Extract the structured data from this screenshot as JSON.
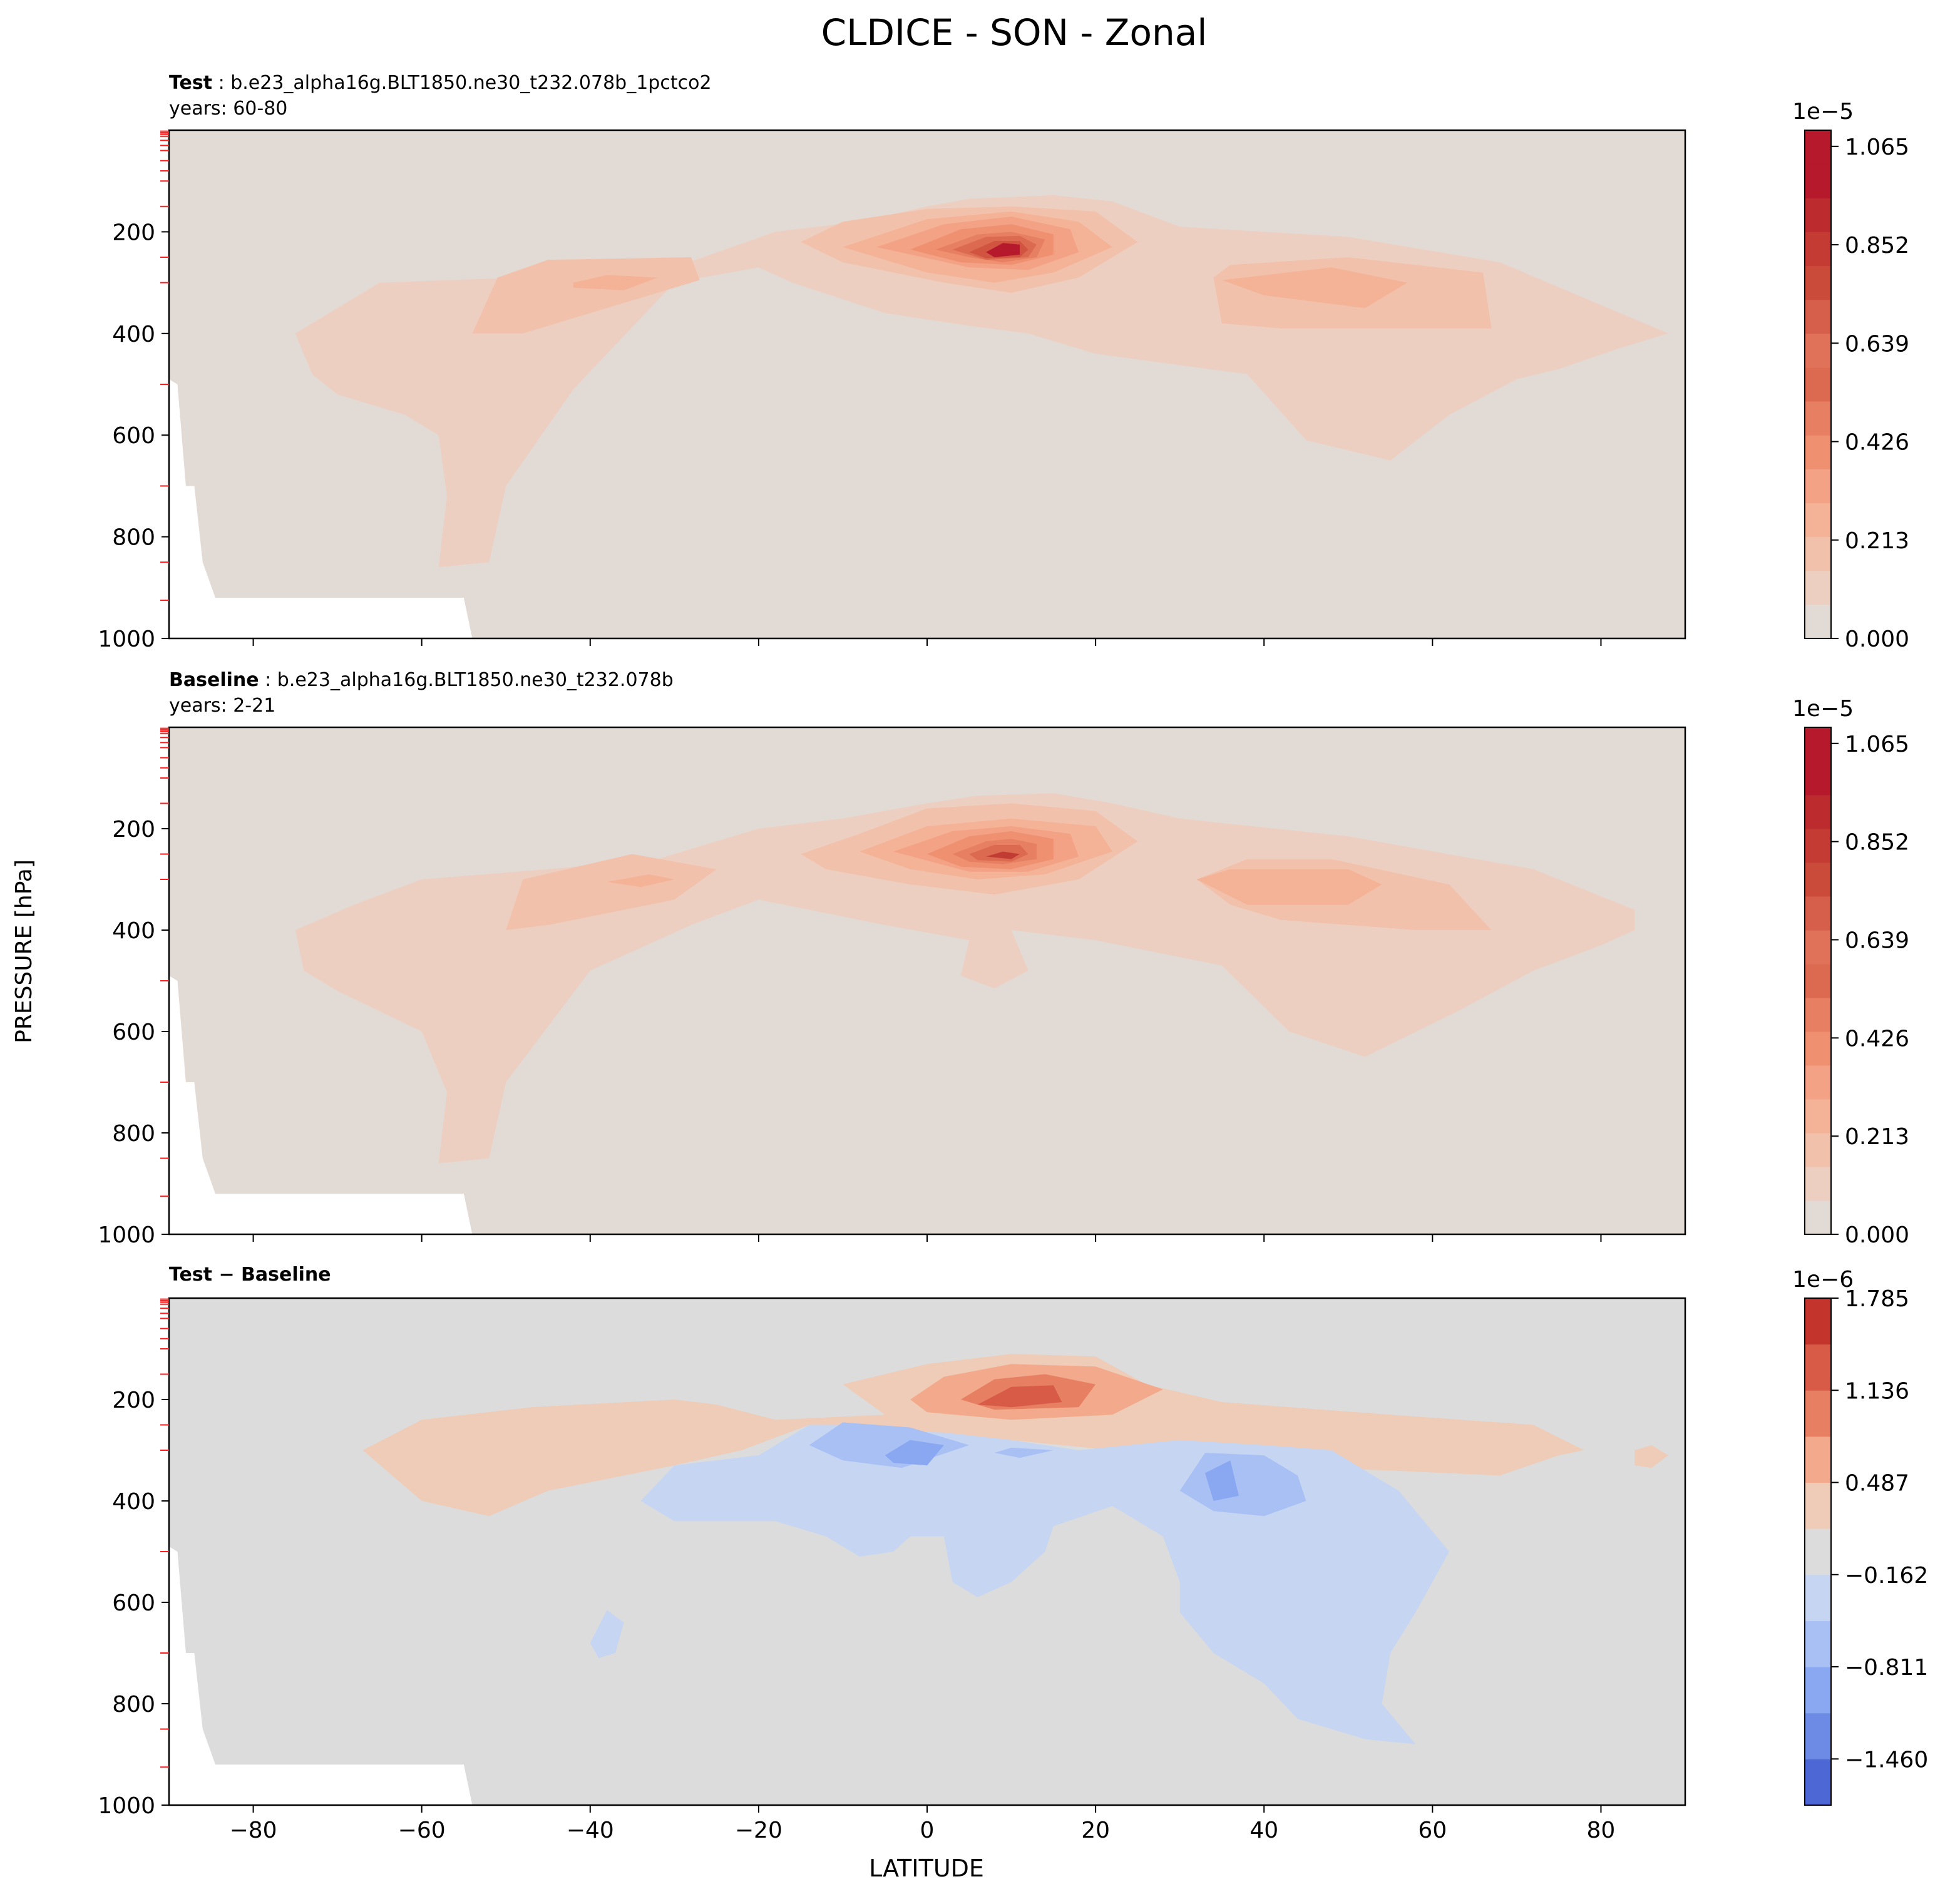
{
  "figure": {
    "title": "CLDICE - SON - Zonal",
    "ylabel": "PRESSURE [hPa]",
    "xlabel": "LATITUDE"
  },
  "chart_data": [
    {
      "type": "heatmap",
      "panel": "test",
      "header_bold": "Test",
      "header_rest": " : b.e23_alpha16g.BLT1850.ne30_t232.078b_1pctco2",
      "years": "years: 60-80",
      "xlim": [
        -90,
        90
      ],
      "ylim": [
        1000,
        0
      ],
      "y_inverted": true,
      "xticks": [
        -80,
        -60,
        -40,
        -20,
        0,
        20,
        40,
        60,
        80
      ],
      "yticks": [
        200,
        400,
        600,
        800,
        1000
      ],
      "show_xtick_labels": false,
      "colormap": "coolwarm (upper half)",
      "colorbar": {
        "offset_label": "1e−5",
        "range": [
          0.0,
          1.1
        ],
        "levels": 15,
        "tick_labels": [
          "0.000",
          "0.213",
          "0.426",
          "0.639",
          "0.852",
          "1.065"
        ],
        "tick_values": [
          0.0,
          0.213,
          0.426,
          0.639,
          0.852,
          1.065
        ]
      },
      "features": [
        {
          "lat": 10,
          "p": 240,
          "value": 1.07,
          "desc": "peak"
        },
        {
          "lat": -42,
          "p": 300,
          "value": 0.35
        },
        {
          "lat": 48,
          "p": 300,
          "value": 0.33
        }
      ],
      "bottom_mask": "white area below topography near Antarctica (-90 to -55, 920-1000 hPa)"
    },
    {
      "type": "heatmap",
      "panel": "baseline",
      "header_bold": "Baseline",
      "header_rest": " : b.e23_alpha16g.BLT1850.ne30_t232.078b",
      "years": "years: 2-21",
      "xlim": [
        -90,
        90
      ],
      "ylim": [
        1000,
        0
      ],
      "y_inverted": true,
      "xticks": [
        -80,
        -60,
        -40,
        -20,
        0,
        20,
        40,
        60,
        80
      ],
      "yticks": [
        200,
        400,
        600,
        800,
        1000
      ],
      "show_xtick_labels": false,
      "colormap": "coolwarm (upper half)",
      "colorbar": {
        "offset_label": "1e−5",
        "range": [
          0.0,
          1.1
        ],
        "levels": 15,
        "tick_labels": [
          "0.000",
          "0.213",
          "0.426",
          "0.639",
          "0.852",
          "1.065"
        ],
        "tick_values": [
          0.0,
          0.213,
          0.426,
          0.639,
          0.852,
          1.065
        ]
      },
      "features": [
        {
          "lat": 9,
          "p": 250,
          "value": 1.0,
          "desc": "peak"
        },
        {
          "lat": -38,
          "p": 300,
          "value": 0.35
        },
        {
          "lat": 45,
          "p": 310,
          "value": 0.33
        }
      ]
    },
    {
      "type": "heatmap",
      "panel": "difference",
      "header_bold": "Test − Baseline",
      "header_rest": "",
      "years": "",
      "xlim": [
        -90,
        90
      ],
      "ylim": [
        1000,
        0
      ],
      "y_inverted": true,
      "xticks": [
        -80,
        -60,
        -40,
        -20,
        0,
        20,
        40,
        60,
        80
      ],
      "yticks": [
        200,
        400,
        600,
        800,
        1000
      ],
      "show_xtick_labels": true,
      "colormap": "coolwarm",
      "colorbar": {
        "offset_label": "1e−6",
        "range": [
          -1.785,
          1.785
        ],
        "levels": 11,
        "tick_labels": [
          "1.785",
          "1.136",
          "0.487",
          "−0.162",
          "−0.811",
          "−1.460"
        ],
        "tick_values": [
          1.785,
          1.136,
          0.487,
          -0.162,
          -0.811,
          -1.46
        ]
      },
      "features": [
        {
          "lat": 12,
          "p": 195,
          "value": 1.6,
          "desc": "positive peak"
        },
        {
          "lat": -3,
          "p": 300,
          "value": -0.9,
          "desc": "negative"
        },
        {
          "lat": 35,
          "p": 350,
          "value": -1.0,
          "desc": "negative"
        }
      ]
    }
  ]
}
